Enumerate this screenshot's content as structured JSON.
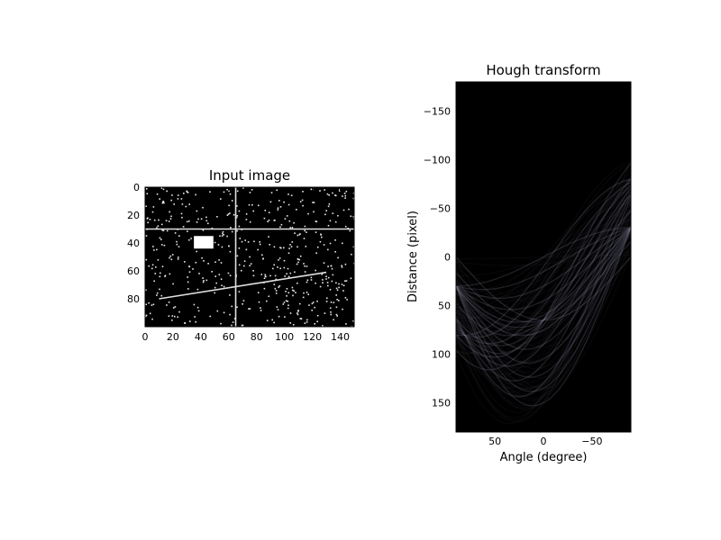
{
  "chart_data": [
    {
      "type": "image",
      "title": "Input image",
      "xlabel": "",
      "ylabel": "",
      "xlim": [
        0,
        150
      ],
      "ylim": [
        100,
        0
      ],
      "xticks": [
        0,
        20,
        40,
        60,
        80,
        100,
        120,
        140
      ],
      "yticks": [
        0,
        20,
        40,
        60,
        80
      ],
      "colormap": "gray",
      "features": {
        "horizontal_line": {
          "y": 30,
          "x": [
            0,
            150
          ]
        },
        "vertical_line": {
          "x": 65,
          "y": [
            0,
            100
          ]
        },
        "diagonal_line": {
          "x": [
            10,
            130
          ],
          "y": [
            80,
            61
          ]
        },
        "square": {
          "x": [
            35,
            49
          ],
          "y": [
            35,
            44
          ]
        },
        "noise": "random white dots"
      }
    },
    {
      "type": "heatmap",
      "title": "Hough transform",
      "xlabel": "Angle (degree)",
      "ylabel": "Distance (pixel)",
      "xlim": [
        90,
        -90
      ],
      "ylim": [
        -180,
        180
      ],
      "xticks": [
        50,
        0,
        -50
      ],
      "yticks": [
        -150,
        -100,
        -50,
        0,
        50,
        100,
        150
      ],
      "colormap": "bone"
    }
  ]
}
